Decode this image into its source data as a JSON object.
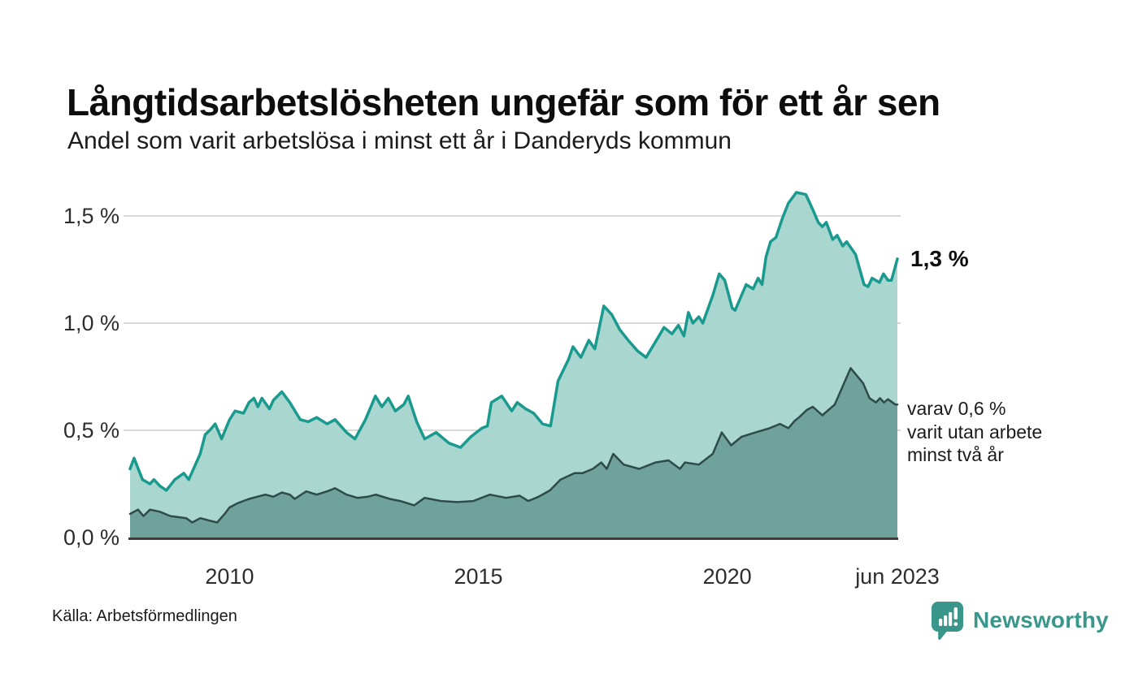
{
  "header": {
    "title": "Långtidsarbetslösheten ungefär som för ett år sen",
    "subtitle": "Andel som varit arbetslösa i minst ett år i Danderyds kommun"
  },
  "footer": {
    "source": "Källa: Arbetsförmedlingen",
    "brand": "Newsworthy"
  },
  "chart_data": {
    "type": "area",
    "title": "Långtidsarbetslösheten ungefär som för ett år sen",
    "subtitle": "Andel som varit arbetslösa i minst ett år i Danderyds kommun",
    "xlabel": "",
    "ylabel": "",
    "x_unit": "year (monthly data, Jan 2008 – Jun 2023)",
    "y_unit": "percent",
    "x_range": [
      2008.0,
      2023.42
    ],
    "y_range": [
      0,
      1.5
    ],
    "grid": true,
    "legend_position": "direct labels at right end of series",
    "x_ticks": [
      {
        "label": "2010",
        "value": 2010
      },
      {
        "label": "2015",
        "value": 2015
      },
      {
        "label": "2020",
        "value": 2020
      },
      {
        "label": "jun 2023",
        "value": 2023.42
      }
    ],
    "y_ticks": [
      {
        "label": "0,0 %",
        "value": 0
      },
      {
        "label": "0,5 %",
        "value": 0.5
      },
      {
        "label": "1,0 %",
        "value": 1.0
      },
      {
        "label": "1,5 %",
        "value": 1.5
      }
    ],
    "annotations": {
      "end_value_label": "1,3 %",
      "side_label_lines": [
        "varav 0,6 %",
        "varit utan arbete",
        "minst två år"
      ]
    },
    "colors": {
      "grid": "#d9d9d9",
      "baseline": "#3d3d3d"
    },
    "series": [
      {
        "name": "Andel arbetslösa minst ett år",
        "line_color": "#1a9a8e",
        "fill_color": "#a9d6cf",
        "line_width": 3.5,
        "end_value": 1.3,
        "points": [
          [
            2008.0,
            0.32
          ],
          [
            2008.08,
            0.37
          ],
          [
            2008.25,
            0.27
          ],
          [
            2008.4,
            0.25
          ],
          [
            2008.48,
            0.27
          ],
          [
            2008.6,
            0.24
          ],
          [
            2008.73,
            0.22
          ],
          [
            2008.9,
            0.27
          ],
          [
            2009.08,
            0.3
          ],
          [
            2009.18,
            0.27
          ],
          [
            2009.41,
            0.39
          ],
          [
            2009.51,
            0.48
          ],
          [
            2009.6,
            0.5
          ],
          [
            2009.71,
            0.53
          ],
          [
            2009.84,
            0.46
          ],
          [
            2010.0,
            0.55
          ],
          [
            2010.11,
            0.59
          ],
          [
            2010.28,
            0.58
          ],
          [
            2010.39,
            0.63
          ],
          [
            2010.49,
            0.65
          ],
          [
            2010.57,
            0.61
          ],
          [
            2010.65,
            0.65
          ],
          [
            2010.8,
            0.6
          ],
          [
            2010.88,
            0.64
          ],
          [
            2011.05,
            0.68
          ],
          [
            2011.21,
            0.63
          ],
          [
            2011.42,
            0.55
          ],
          [
            2011.58,
            0.54
          ],
          [
            2011.75,
            0.56
          ],
          [
            2011.96,
            0.53
          ],
          [
            2012.12,
            0.55
          ],
          [
            2012.35,
            0.49
          ],
          [
            2012.52,
            0.46
          ],
          [
            2012.73,
            0.55
          ],
          [
            2012.93,
            0.66
          ],
          [
            2013.06,
            0.61
          ],
          [
            2013.19,
            0.65
          ],
          [
            2013.33,
            0.59
          ],
          [
            2013.5,
            0.62
          ],
          [
            2013.59,
            0.66
          ],
          [
            2013.76,
            0.54
          ],
          [
            2013.92,
            0.46
          ],
          [
            2014.15,
            0.49
          ],
          [
            2014.41,
            0.44
          ],
          [
            2014.64,
            0.42
          ],
          [
            2014.85,
            0.47
          ],
          [
            2015.07,
            0.51
          ],
          [
            2015.18,
            0.52
          ],
          [
            2015.26,
            0.63
          ],
          [
            2015.47,
            0.66
          ],
          [
            2015.67,
            0.59
          ],
          [
            2015.78,
            0.63
          ],
          [
            2015.95,
            0.6
          ],
          [
            2016.11,
            0.58
          ],
          [
            2016.29,
            0.53
          ],
          [
            2016.45,
            0.52
          ],
          [
            2016.6,
            0.73
          ],
          [
            2016.81,
            0.83
          ],
          [
            2016.9,
            0.89
          ],
          [
            2017.06,
            0.84
          ],
          [
            2017.22,
            0.92
          ],
          [
            2017.34,
            0.88
          ],
          [
            2017.52,
            1.08
          ],
          [
            2017.68,
            1.04
          ],
          [
            2017.84,
            0.97
          ],
          [
            2018.01,
            0.92
          ],
          [
            2018.2,
            0.87
          ],
          [
            2018.37,
            0.84
          ],
          [
            2018.55,
            0.91
          ],
          [
            2018.73,
            0.98
          ],
          [
            2018.89,
            0.95
          ],
          [
            2019.02,
            0.99
          ],
          [
            2019.13,
            0.94
          ],
          [
            2019.22,
            1.05
          ],
          [
            2019.31,
            1.0
          ],
          [
            2019.43,
            1.03
          ],
          [
            2019.51,
            1.0
          ],
          [
            2019.71,
            1.13
          ],
          [
            2019.84,
            1.23
          ],
          [
            2019.95,
            1.2
          ],
          [
            2020.1,
            1.07
          ],
          [
            2020.16,
            1.06
          ],
          [
            2020.38,
            1.18
          ],
          [
            2020.52,
            1.16
          ],
          [
            2020.62,
            1.21
          ],
          [
            2020.7,
            1.18
          ],
          [
            2020.78,
            1.31
          ],
          [
            2020.87,
            1.38
          ],
          [
            2020.98,
            1.4
          ],
          [
            2021.11,
            1.49
          ],
          [
            2021.23,
            1.56
          ],
          [
            2021.39,
            1.61
          ],
          [
            2021.58,
            1.6
          ],
          [
            2021.72,
            1.53
          ],
          [
            2021.83,
            1.47
          ],
          [
            2021.91,
            1.45
          ],
          [
            2021.99,
            1.47
          ],
          [
            2022.12,
            1.39
          ],
          [
            2022.21,
            1.41
          ],
          [
            2022.32,
            1.36
          ],
          [
            2022.4,
            1.38
          ],
          [
            2022.58,
            1.32
          ],
          [
            2022.75,
            1.18
          ],
          [
            2022.83,
            1.17
          ],
          [
            2022.91,
            1.21
          ],
          [
            2023.06,
            1.19
          ],
          [
            2023.14,
            1.23
          ],
          [
            2023.23,
            1.2
          ],
          [
            2023.3,
            1.2
          ],
          [
            2023.42,
            1.3
          ]
        ]
      },
      {
        "name": "Varav utan arbete minst två år",
        "line_color": "#2e4b49",
        "fill_color": "#70a29c",
        "line_width": 2.5,
        "end_value": 0.6,
        "points": [
          [
            2008.0,
            0.11
          ],
          [
            2008.16,
            0.13
          ],
          [
            2008.27,
            0.1
          ],
          [
            2008.4,
            0.13
          ],
          [
            2008.6,
            0.12
          ],
          [
            2008.81,
            0.1
          ],
          [
            2009.13,
            0.09
          ],
          [
            2009.25,
            0.07
          ],
          [
            2009.41,
            0.09
          ],
          [
            2009.58,
            0.08
          ],
          [
            2009.75,
            0.07
          ],
          [
            2009.9,
            0.11
          ],
          [
            2010.0,
            0.14
          ],
          [
            2010.16,
            0.16
          ],
          [
            2010.39,
            0.18
          ],
          [
            2010.72,
            0.2
          ],
          [
            2010.88,
            0.19
          ],
          [
            2011.05,
            0.21
          ],
          [
            2011.21,
            0.2
          ],
          [
            2011.31,
            0.18
          ],
          [
            2011.54,
            0.215
          ],
          [
            2011.75,
            0.2
          ],
          [
            2011.96,
            0.215
          ],
          [
            2012.12,
            0.23
          ],
          [
            2012.35,
            0.2
          ],
          [
            2012.57,
            0.185
          ],
          [
            2012.78,
            0.19
          ],
          [
            2012.94,
            0.2
          ],
          [
            2013.22,
            0.18
          ],
          [
            2013.43,
            0.17
          ],
          [
            2013.71,
            0.15
          ],
          [
            2013.92,
            0.185
          ],
          [
            2014.25,
            0.17
          ],
          [
            2014.58,
            0.165
          ],
          [
            2014.9,
            0.17
          ],
          [
            2015.23,
            0.2
          ],
          [
            2015.56,
            0.185
          ],
          [
            2015.83,
            0.195
          ],
          [
            2016.0,
            0.17
          ],
          [
            2016.21,
            0.19
          ],
          [
            2016.44,
            0.22
          ],
          [
            2016.65,
            0.27
          ],
          [
            2016.93,
            0.3
          ],
          [
            2017.09,
            0.3
          ],
          [
            2017.3,
            0.32
          ],
          [
            2017.47,
            0.35
          ],
          [
            2017.58,
            0.32
          ],
          [
            2017.71,
            0.39
          ],
          [
            2017.92,
            0.34
          ],
          [
            2018.23,
            0.32
          ],
          [
            2018.56,
            0.35
          ],
          [
            2018.82,
            0.36
          ],
          [
            2019.05,
            0.32
          ],
          [
            2019.15,
            0.35
          ],
          [
            2019.43,
            0.34
          ],
          [
            2019.71,
            0.39
          ],
          [
            2019.89,
            0.49
          ],
          [
            2020.08,
            0.43
          ],
          [
            2020.29,
            0.47
          ],
          [
            2020.57,
            0.49
          ],
          [
            2020.85,
            0.51
          ],
          [
            2021.06,
            0.53
          ],
          [
            2021.23,
            0.51
          ],
          [
            2021.36,
            0.545
          ],
          [
            2021.44,
            0.56
          ],
          [
            2021.6,
            0.595
          ],
          [
            2021.72,
            0.61
          ],
          [
            2021.91,
            0.57
          ],
          [
            2022.16,
            0.62
          ],
          [
            2022.48,
            0.79
          ],
          [
            2022.73,
            0.72
          ],
          [
            2022.86,
            0.65
          ],
          [
            2022.99,
            0.63
          ],
          [
            2023.07,
            0.65
          ],
          [
            2023.15,
            0.63
          ],
          [
            2023.23,
            0.645
          ],
          [
            2023.38,
            0.62
          ],
          [
            2023.42,
            0.62
          ]
        ]
      }
    ]
  }
}
